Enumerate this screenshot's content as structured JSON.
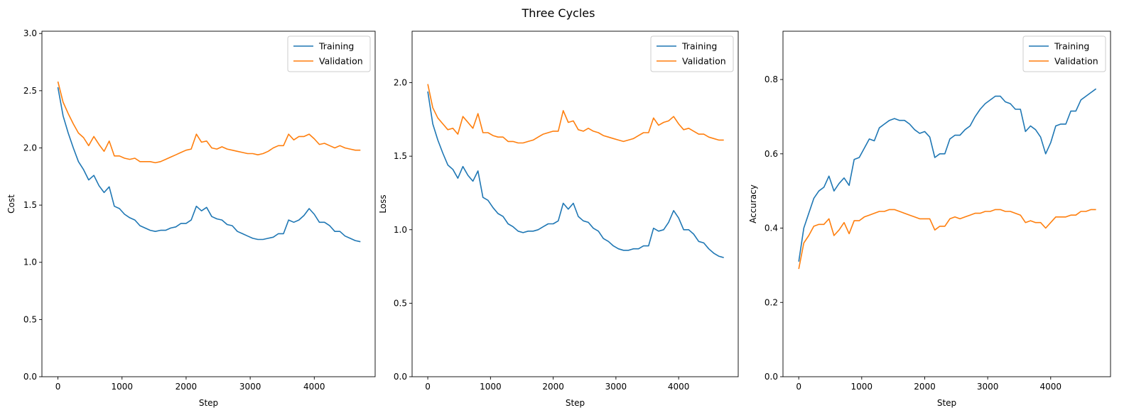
{
  "figure": {
    "title": "Three Cycles"
  },
  "colors": {
    "training": "#1f77b4",
    "validation": "#ff7f0e"
  },
  "chart_data": [
    {
      "type": "line",
      "xlabel": "Step",
      "ylabel": "Cost",
      "xlim": [
        -250,
        4950
      ],
      "ylim": [
        0,
        3.02
      ],
      "xticks": [
        0,
        1000,
        2000,
        3000,
        4000
      ],
      "yticks": [
        0.0,
        0.5,
        1.0,
        1.5,
        2.0,
        2.5,
        3.0
      ],
      "ytick_labels": [
        "0.0",
        "0.5",
        "1.0",
        "1.5",
        "2.0",
        "2.5",
        "3.0"
      ],
      "legend": {
        "position": "upper-right",
        "entries": [
          "Training",
          "Validation"
        ]
      },
      "x": [
        0,
        80,
        160,
        240,
        320,
        400,
        480,
        560,
        640,
        720,
        800,
        880,
        960,
        1040,
        1120,
        1200,
        1280,
        1360,
        1440,
        1520,
        1600,
        1680,
        1760,
        1840,
        1920,
        2000,
        2080,
        2160,
        2240,
        2320,
        2400,
        2480,
        2560,
        2640,
        2720,
        2800,
        2880,
        2960,
        3040,
        3120,
        3200,
        3280,
        3360,
        3440,
        3520,
        3600,
        3680,
        3760,
        3840,
        3920,
        4000,
        4080,
        4160,
        4240,
        4320,
        4400,
        4480,
        4560,
        4640,
        4720
      ],
      "series": [
        {
          "name": "Training",
          "color": "#1f77b4",
          "values": [
            2.53,
            2.28,
            2.13,
            2.0,
            1.88,
            1.81,
            1.72,
            1.76,
            1.67,
            1.61,
            1.66,
            1.49,
            1.47,
            1.42,
            1.39,
            1.37,
            1.32,
            1.3,
            1.28,
            1.27,
            1.28,
            1.28,
            1.3,
            1.31,
            1.34,
            1.34,
            1.37,
            1.49,
            1.45,
            1.48,
            1.4,
            1.38,
            1.37,
            1.33,
            1.32,
            1.27,
            1.25,
            1.23,
            1.21,
            1.2,
            1.2,
            1.21,
            1.22,
            1.25,
            1.25,
            1.37,
            1.35,
            1.37,
            1.41,
            1.47,
            1.42,
            1.35,
            1.35,
            1.32,
            1.27,
            1.27,
            1.23,
            1.21,
            1.19,
            1.18
          ]
        },
        {
          "name": "Validation",
          "color": "#ff7f0e",
          "values": [
            2.58,
            2.4,
            2.3,
            2.21,
            2.13,
            2.09,
            2.02,
            2.1,
            2.03,
            1.97,
            2.06,
            1.93,
            1.93,
            1.91,
            1.9,
            1.91,
            1.88,
            1.88,
            1.88,
            1.87,
            1.88,
            1.9,
            1.92,
            1.94,
            1.96,
            1.98,
            1.99,
            2.12,
            2.05,
            2.06,
            2.0,
            1.99,
            2.01,
            1.99,
            1.98,
            1.97,
            1.96,
            1.95,
            1.95,
            1.94,
            1.95,
            1.97,
            2.0,
            2.02,
            2.02,
            2.12,
            2.07,
            2.1,
            2.1,
            2.12,
            2.08,
            2.03,
            2.04,
            2.02,
            2.0,
            2.02,
            2.0,
            1.99,
            1.98,
            1.98
          ]
        }
      ]
    },
    {
      "type": "line",
      "xlabel": "Step",
      "ylabel": "Loss",
      "xlim": [
        -250,
        4950
      ],
      "ylim": [
        0,
        2.35
      ],
      "xticks": [
        0,
        1000,
        2000,
        3000,
        4000
      ],
      "yticks": [
        0.0,
        0.5,
        1.0,
        1.5,
        2.0
      ],
      "ytick_labels": [
        "0.0",
        "0.5",
        "1.0",
        "1.5",
        "2.0"
      ],
      "legend": {
        "position": "upper-right",
        "entries": [
          "Training",
          "Validation"
        ]
      },
      "x": [
        0,
        80,
        160,
        240,
        320,
        400,
        480,
        560,
        640,
        720,
        800,
        880,
        960,
        1040,
        1120,
        1200,
        1280,
        1360,
        1440,
        1520,
        1600,
        1680,
        1760,
        1840,
        1920,
        2000,
        2080,
        2160,
        2240,
        2320,
        2400,
        2480,
        2560,
        2640,
        2720,
        2800,
        2880,
        2960,
        3040,
        3120,
        3200,
        3280,
        3360,
        3440,
        3520,
        3600,
        3680,
        3760,
        3840,
        3920,
        4000,
        4080,
        4160,
        4240,
        4320,
        4400,
        4480,
        4560,
        4640,
        4720
      ],
      "series": [
        {
          "name": "Training",
          "color": "#1f77b4",
          "values": [
            1.94,
            1.72,
            1.61,
            1.52,
            1.44,
            1.41,
            1.35,
            1.43,
            1.37,
            1.33,
            1.4,
            1.22,
            1.2,
            1.15,
            1.11,
            1.09,
            1.04,
            1.02,
            0.99,
            0.98,
            0.99,
            0.99,
            1.0,
            1.02,
            1.04,
            1.04,
            1.06,
            1.18,
            1.14,
            1.18,
            1.09,
            1.06,
            1.05,
            1.01,
            0.99,
            0.94,
            0.92,
            0.89,
            0.87,
            0.86,
            0.86,
            0.87,
            0.87,
            0.89,
            0.89,
            1.01,
            0.99,
            1.0,
            1.05,
            1.13,
            1.08,
            1.0,
            1.0,
            0.97,
            0.92,
            0.91,
            0.87,
            0.84,
            0.82,
            0.81
          ]
        },
        {
          "name": "Validation",
          "color": "#ff7f0e",
          "values": [
            1.99,
            1.83,
            1.76,
            1.72,
            1.68,
            1.69,
            1.65,
            1.77,
            1.73,
            1.69,
            1.79,
            1.66,
            1.66,
            1.64,
            1.63,
            1.63,
            1.6,
            1.6,
            1.59,
            1.59,
            1.6,
            1.61,
            1.63,
            1.65,
            1.66,
            1.67,
            1.67,
            1.81,
            1.73,
            1.74,
            1.68,
            1.67,
            1.69,
            1.67,
            1.66,
            1.64,
            1.63,
            1.62,
            1.61,
            1.6,
            1.61,
            1.62,
            1.64,
            1.66,
            1.66,
            1.76,
            1.71,
            1.73,
            1.74,
            1.77,
            1.72,
            1.68,
            1.69,
            1.67,
            1.65,
            1.65,
            1.63,
            1.62,
            1.61,
            1.61
          ]
        }
      ]
    },
    {
      "type": "line",
      "xlabel": "Step",
      "ylabel": "Accuracy",
      "xlim": [
        -250,
        4950
      ],
      "ylim": [
        0,
        0.93
      ],
      "xticks": [
        0,
        1000,
        2000,
        3000,
        4000
      ],
      "yticks": [
        0.0,
        0.2,
        0.4,
        0.6,
        0.8
      ],
      "ytick_labels": [
        "0.0",
        "0.2",
        "0.4",
        "0.6",
        "0.8"
      ],
      "legend": {
        "position": "upper-right",
        "entries": [
          "Training",
          "Validation"
        ]
      },
      "x": [
        0,
        80,
        160,
        240,
        320,
        400,
        480,
        560,
        640,
        720,
        800,
        880,
        960,
        1040,
        1120,
        1200,
        1280,
        1360,
        1440,
        1520,
        1600,
        1680,
        1760,
        1840,
        1920,
        2000,
        2080,
        2160,
        2240,
        2320,
        2400,
        2480,
        2560,
        2640,
        2720,
        2800,
        2880,
        2960,
        3040,
        3120,
        3200,
        3280,
        3360,
        3440,
        3520,
        3600,
        3680,
        3760,
        3840,
        3920,
        4000,
        4080,
        4160,
        4240,
        4320,
        4400,
        4480,
        4560,
        4640,
        4720
      ],
      "series": [
        {
          "name": "Training",
          "color": "#1f77b4",
          "values": [
            0.31,
            0.4,
            0.44,
            0.48,
            0.5,
            0.51,
            0.54,
            0.5,
            0.52,
            0.535,
            0.515,
            0.585,
            0.59,
            0.615,
            0.64,
            0.635,
            0.67,
            0.68,
            0.69,
            0.695,
            0.69,
            0.69,
            0.68,
            0.665,
            0.655,
            0.66,
            0.645,
            0.59,
            0.6,
            0.6,
            0.64,
            0.65,
            0.65,
            0.665,
            0.675,
            0.7,
            0.72,
            0.735,
            0.745,
            0.755,
            0.755,
            0.74,
            0.735,
            0.72,
            0.72,
            0.66,
            0.675,
            0.665,
            0.645,
            0.6,
            0.63,
            0.675,
            0.68,
            0.68,
            0.715,
            0.715,
            0.745,
            0.755,
            0.765,
            0.775
          ]
        },
        {
          "name": "Validation",
          "color": "#ff7f0e",
          "values": [
            0.29,
            0.36,
            0.38,
            0.405,
            0.41,
            0.41,
            0.425,
            0.38,
            0.395,
            0.415,
            0.385,
            0.42,
            0.42,
            0.43,
            0.435,
            0.44,
            0.445,
            0.445,
            0.45,
            0.45,
            0.445,
            0.44,
            0.435,
            0.43,
            0.425,
            0.425,
            0.425,
            0.395,
            0.405,
            0.405,
            0.425,
            0.43,
            0.425,
            0.43,
            0.435,
            0.44,
            0.44,
            0.445,
            0.445,
            0.45,
            0.45,
            0.445,
            0.445,
            0.44,
            0.435,
            0.415,
            0.42,
            0.415,
            0.415,
            0.4,
            0.415,
            0.43,
            0.43,
            0.43,
            0.435,
            0.435,
            0.445,
            0.445,
            0.45,
            0.45
          ]
        }
      ]
    }
  ]
}
